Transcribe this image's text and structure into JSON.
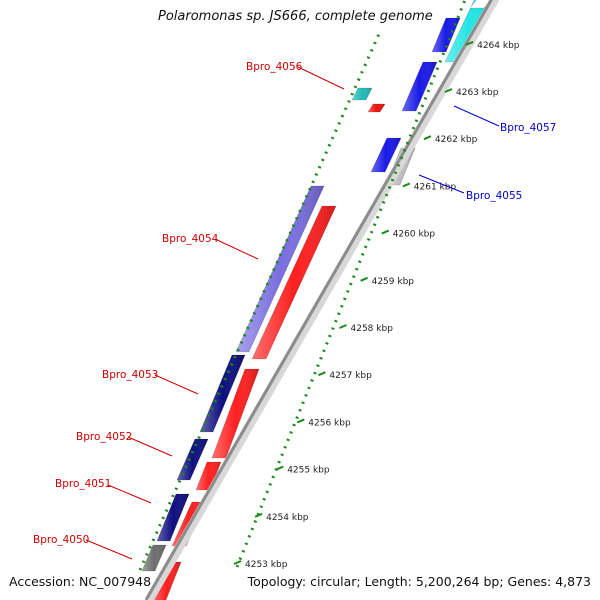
{
  "title": "Polaromonas sp. JS666, complete genome",
  "accession": "Accession: NC_007948",
  "topology": "Topology: circular; Length: 5,200,264 bp; Genes: 4,873",
  "colors": {
    "ruler": "#1a8a1a",
    "backbone": "#8c8c8c",
    "label_left": "#cc0000",
    "label_right": "#0000cc"
  },
  "ticks": [
    {
      "kbp": 4253,
      "label": "4253 kbp"
    },
    {
      "kbp": 4254,
      "label": "4254 kbp"
    },
    {
      "kbp": 4255,
      "label": "4255 kbp"
    },
    {
      "kbp": 4256,
      "label": "4256 kbp"
    },
    {
      "kbp": 4257,
      "label": "4257 kbp"
    },
    {
      "kbp": 4258,
      "label": "4258 kbp"
    },
    {
      "kbp": 4259,
      "label": "4259 kbp"
    },
    {
      "kbp": 4260,
      "label": "4260 kbp"
    },
    {
      "kbp": 4261,
      "label": "4261 kbp"
    },
    {
      "kbp": 4262,
      "label": "4262 kbp"
    },
    {
      "kbp": 4263,
      "label": "4263 kbp"
    },
    {
      "kbp": 4264,
      "label": "4264 kbp"
    }
  ],
  "genes": [
    {
      "name": "Bpro_4050",
      "side": "left"
    },
    {
      "name": "Bpro_4051",
      "side": "left"
    },
    {
      "name": "Bpro_4052",
      "side": "left"
    },
    {
      "name": "Bpro_4053",
      "side": "left"
    },
    {
      "name": "Bpro_4054",
      "side": "left"
    },
    {
      "name": "Bpro_4056",
      "side": "left"
    },
    {
      "name": "Bpro_4055",
      "side": "right"
    },
    {
      "name": "Bpro_4057",
      "side": "right"
    }
  ]
}
